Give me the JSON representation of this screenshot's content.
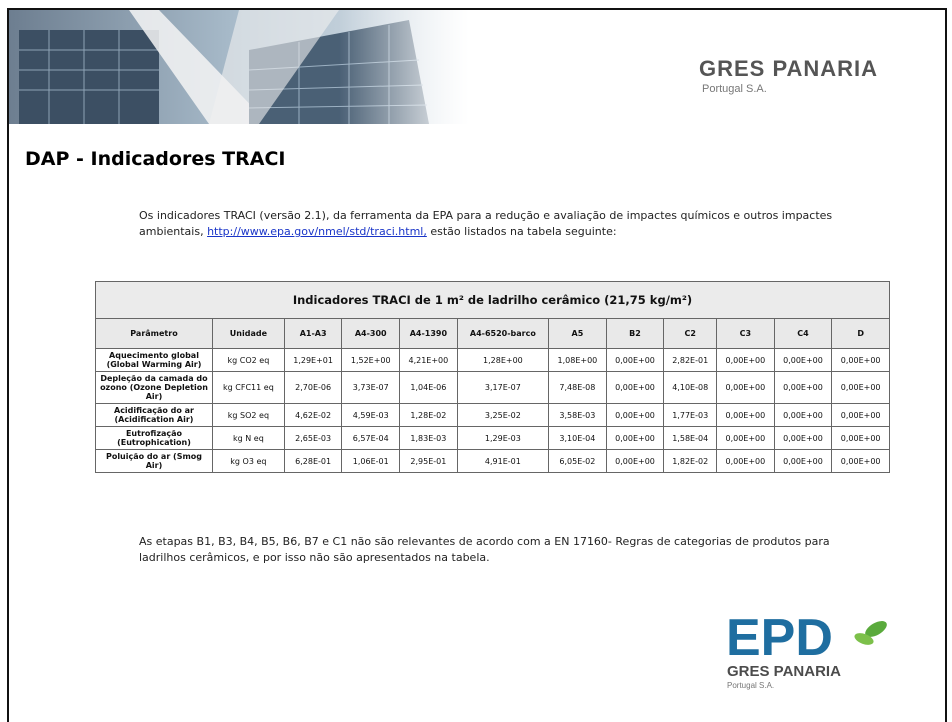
{
  "header": {
    "brand": "GRES PANARIA",
    "brand_sub": "Portugal S.A."
  },
  "title": "DAP - Indicadores TRACI",
  "intro": {
    "before": "Os indicadores TRACI (versão 2.1), da ferramenta da EPA para a redução e avaliação de impactes químicos e outros impactes ambientais, ",
    "link": "http://www.epa.gov/nmel/std/traci.html,",
    "after": " estão listados na tabela seguinte:"
  },
  "table": {
    "caption": "Indicadores TRACI de 1 m² de ladrilho cerâmico (21,75 kg/m²)",
    "columns": [
      "Parâmetro",
      "Unidade",
      "A1-A3",
      "A4-300",
      "A4-1390",
      "A4-6520-barco",
      "A5",
      "B2",
      "C2",
      "C3",
      "C4",
      "D"
    ],
    "rows": [
      [
        "Aquecimento global (Global Warming Air)",
        "kg CO2 eq",
        "1,29E+01",
        "1,52E+00",
        "4,21E+00",
        "1,28E+00",
        "1,08E+00",
        "0,00E+00",
        "2,82E-01",
        "0,00E+00",
        "0,00E+00",
        "0,00E+00"
      ],
      [
        "Depleção da camada do ozono (Ozone Depletion Air)",
        "kg CFC11 eq",
        "2,70E-06",
        "3,73E-07",
        "1,04E-06",
        "3,17E-07",
        "7,48E-08",
        "0,00E+00",
        "4,10E-08",
        "0,00E+00",
        "0,00E+00",
        "0,00E+00"
      ],
      [
        "Acidificação do ar (Acidification Air)",
        "kg SO2 eq",
        "4,62E-02",
        "4,59E-03",
        "1,28E-02",
        "3,25E-02",
        "3,58E-03",
        "0,00E+00",
        "1,77E-03",
        "0,00E+00",
        "0,00E+00",
        "0,00E+00"
      ],
      [
        "Eutrofização (Eutrophication)",
        "kg N eq",
        "2,65E-03",
        "6,57E-04",
        "1,83E-03",
        "1,29E-03",
        "3,10E-04",
        "0,00E+00",
        "1,58E-04",
        "0,00E+00",
        "0,00E+00",
        "0,00E+00"
      ],
      [
        "Poluição do ar (Smog Air)",
        "kg O3 eq",
        "6,28E-01",
        "1,06E-01",
        "2,95E-01",
        "4,91E-01",
        "6,05E-02",
        "0,00E+00",
        "1,82E-02",
        "0,00E+00",
        "0,00E+00",
        "0,00E+00"
      ]
    ]
  },
  "note": "As etapas B1, B3, B4, B5, B6, B7 e C1 não são relevantes de acordo com a EN 17160- Regras de categorias de produtos para ladrilhos cerâmicos, e por isso não são apresentados na tabela.",
  "epd_logo": {
    "mark": "EPD",
    "brand": "GRES PANARIA",
    "brand_sub": "Portugal S.A."
  }
}
